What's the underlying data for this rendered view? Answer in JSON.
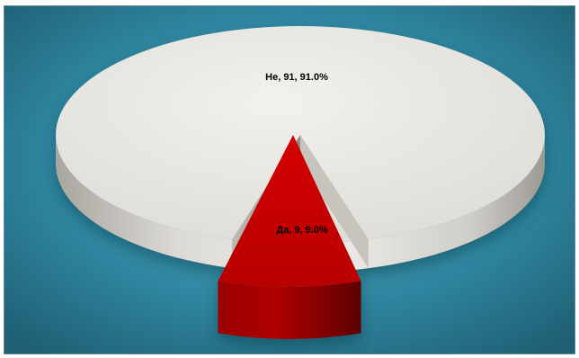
{
  "chart_data": {
    "type": "pie",
    "style": "3d",
    "categories": [
      "Не",
      "Да"
    ],
    "values": [
      91,
      9
    ],
    "percentages": [
      91.0,
      9.0
    ],
    "labels": [
      "Не, 91, 91.0%",
      "Да, 9, 9.0%"
    ],
    "colors": [
      "#e9e7e2",
      "#c00000"
    ],
    "label_colors": [
      "#1f3864",
      "#ffff00"
    ],
    "exploded": [
      false,
      true
    ],
    "background": "#2f86a0",
    "title": "",
    "legend": "none"
  }
}
